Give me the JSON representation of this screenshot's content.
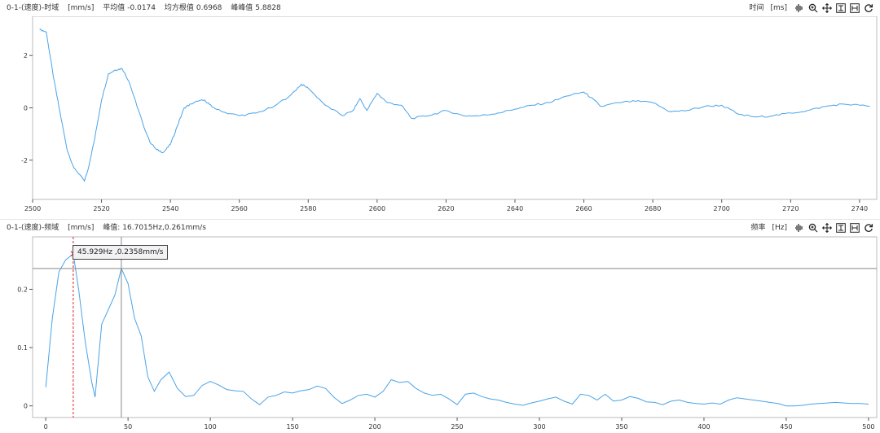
{
  "top": {
    "title": "0-1-(速度)-时域",
    "unit": "[mm/s]",
    "mean_label": "平均值",
    "mean_value": "-0.0174",
    "rms_label": "均方根值",
    "rms_value": "0.6968",
    "pp_label": "峰峰值",
    "pp_value": "5.8828",
    "axis_name": "时间",
    "axis_unit": "[ms]"
  },
  "bottom": {
    "title": "0-1-(速度)-频域",
    "unit": "[mm/s]",
    "peak_label": "峰值:",
    "peak_value": "16.7015Hz,0.261mm/s",
    "axis_name": "频率",
    "axis_unit": "[Hz]",
    "tooltip": "45.929Hz ,0.2358mm/s"
  },
  "toolbar_icons": [
    "waveform-icon",
    "zoom-icon",
    "pan-icon",
    "fit-vertical-icon",
    "fit-horizontal-icon",
    "reset-icon"
  ],
  "colors": {
    "series": "#4aa3e8",
    "cursor_red": "#e02020",
    "cursor_gray": "#888888"
  },
  "chart_data": [
    {
      "type": "line",
      "title": "0-1-(速度)-时域",
      "xlabel": "时间 [ms]",
      "ylabel": "[mm/s]",
      "xlim": [
        2500,
        2745
      ],
      "ylim": [
        -3.5,
        3.5
      ],
      "xticks": [
        2500,
        2520,
        2540,
        2560,
        2580,
        2600,
        2620,
        2640,
        2660,
        2680,
        2700,
        2720,
        2740
      ],
      "yticks": [
        -2,
        0,
        2
      ],
      "grid": false,
      "series": [
        {
          "x": [
            2502,
            2504,
            2506,
            2508,
            2510,
            2512,
            2514,
            2515,
            2516,
            2518,
            2520,
            2522,
            2524,
            2526,
            2528,
            2530,
            2532,
            2534,
            2536,
            2538,
            2540,
            2542,
            2544,
            2546,
            2548,
            2550,
            2552,
            2555,
            2560,
            2565,
            2570,
            2575,
            2578,
            2580,
            2585,
            2590,
            2593,
            2595,
            2597,
            2600,
            2603,
            2607,
            2610,
            2615,
            2620,
            2625,
            2630,
            2635,
            2640,
            2645,
            2650,
            2655,
            2660,
            2662,
            2665,
            2670,
            2675,
            2680,
            2685,
            2690,
            2695,
            2700,
            2705,
            2710,
            2715,
            2720,
            2725,
            2730,
            2735,
            2740,
            2743
          ],
          "y": [
            3.0,
            2.9,
            1.2,
            -0.2,
            -1.6,
            -2.3,
            -2.6,
            -2.8,
            -2.4,
            -1.2,
            0.3,
            1.3,
            1.45,
            1.5,
            1.0,
            0.2,
            -0.6,
            -1.3,
            -1.6,
            -1.7,
            -1.4,
            -0.7,
            0.0,
            0.15,
            0.25,
            0.3,
            0.05,
            -0.15,
            -0.3,
            -0.2,
            0.05,
            0.5,
            0.9,
            0.75,
            0.1,
            -0.3,
            -0.1,
            0.35,
            -0.1,
            0.55,
            0.2,
            0.1,
            -0.4,
            -0.3,
            -0.1,
            -0.3,
            -0.3,
            -0.2,
            -0.05,
            0.1,
            0.2,
            0.45,
            0.6,
            0.4,
            0.05,
            0.2,
            0.25,
            0.2,
            -0.15,
            -0.1,
            0.05,
            0.1,
            -0.25,
            -0.35,
            -0.3,
            -0.2,
            -0.1,
            0.05,
            0.15,
            0.1,
            0.05
          ]
        }
      ]
    },
    {
      "type": "line",
      "title": "0-1-(速度)-频域",
      "xlabel": "频率 [Hz]",
      "ylabel": "[mm/s]",
      "xlim": [
        -8,
        505
      ],
      "ylim": [
        -0.02,
        0.29
      ],
      "xticks": [
        0,
        50,
        100,
        150,
        200,
        250,
        300,
        350,
        400,
        450,
        500
      ],
      "yticks": [
        0,
        0.1,
        0.2
      ],
      "grid": false,
      "cursors": [
        {
          "x": 16.7015,
          "y": 0.261,
          "style": "red-dashed"
        },
        {
          "x": 45.929,
          "y": 0.2358,
          "style": "gray-solid"
        }
      ],
      "series": [
        {
          "x": [
            0,
            4,
            8,
            12,
            16.7,
            20,
            24,
            28,
            30,
            34,
            38,
            42,
            45.9,
            50,
            54,
            58,
            62,
            66,
            70,
            75,
            80,
            85,
            90,
            95,
            100,
            105,
            110,
            115,
            120,
            125,
            130,
            135,
            140,
            145,
            150,
            155,
            160,
            165,
            170,
            175,
            180,
            185,
            190,
            195,
            200,
            205,
            210,
            215,
            220,
            225,
            230,
            235,
            240,
            245,
            250,
            255,
            260,
            265,
            270,
            275,
            280,
            285,
            290,
            295,
            300,
            305,
            310,
            315,
            320,
            325,
            330,
            335,
            340,
            345,
            350,
            355,
            360,
            365,
            370,
            375,
            380,
            385,
            390,
            395,
            400,
            405,
            410,
            415,
            420,
            425,
            430,
            435,
            440,
            445,
            450,
            455,
            460,
            465,
            470,
            475,
            480,
            485,
            490,
            495,
            500
          ],
          "y": [
            0.032,
            0.15,
            0.23,
            0.25,
            0.261,
            0.2,
            0.11,
            0.04,
            0.015,
            0.14,
            0.165,
            0.19,
            0.2358,
            0.21,
            0.15,
            0.12,
            0.05,
            0.025,
            0.045,
            0.058,
            0.03,
            0.016,
            0.018,
            0.035,
            0.042,
            0.036,
            0.028,
            0.026,
            0.025,
            0.012,
            0.002,
            0.015,
            0.018,
            0.024,
            0.022,
            0.026,
            0.028,
            0.034,
            0.03,
            0.015,
            0.004,
            0.01,
            0.018,
            0.02,
            0.015,
            0.025,
            0.045,
            0.04,
            0.042,
            0.03,
            0.022,
            0.018,
            0.02,
            0.012,
            0.002,
            0.02,
            0.022,
            0.016,
            0.012,
            0.01,
            0.006,
            0.003,
            0.001,
            0.005,
            0.008,
            0.012,
            0.015,
            0.008,
            0.003,
            0.02,
            0.018,
            0.01,
            0.02,
            0.008,
            0.01,
            0.016,
            0.013,
            0.007,
            0.006,
            0.002,
            0.008,
            0.01,
            0.006,
            0.004,
            0.003,
            0.005,
            0.003,
            0.01,
            0.014,
            0.012,
            0.01,
            0.008,
            0.006,
            0.004,
            0.0,
            0.0,
            0.001,
            0.003,
            0.004,
            0.005,
            0.006,
            0.005,
            0.004,
            0.004,
            0.003
          ]
        }
      ]
    }
  ]
}
